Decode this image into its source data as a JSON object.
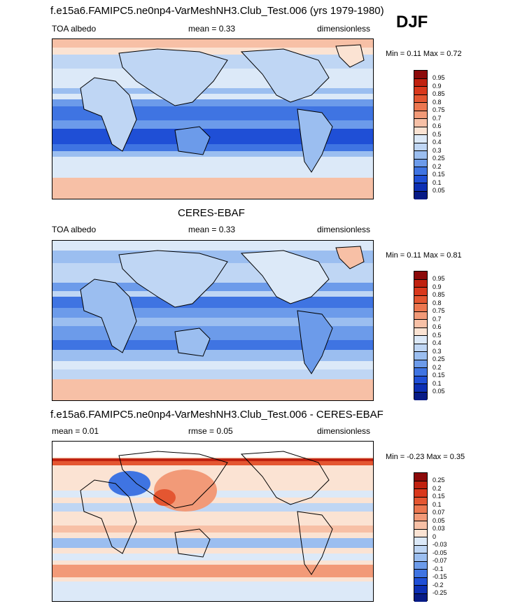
{
  "season": "DJF",
  "panels": [
    {
      "title": "f.e15a6.FAMIPC5.ne0np4-VarMeshNH3.Club_Test.006 (yrs 1979-1980)",
      "left": "TOA albedo",
      "center": "mean =   0.33",
      "right": "dimensionless",
      "minmax": "Min =   0.11 Max =   0.72",
      "colorbar": {
        "labels": [
          "0.95",
          "0.9",
          "0.85",
          "0.8",
          "0.75",
          "0.7",
          "0.6",
          "0.5",
          "0.4",
          "0.3",
          "0.25",
          "0.2",
          "0.15",
          "0.1",
          "0.05"
        ],
        "colors": [
          "#8c0a0a",
          "#c0210f",
          "#d9381c",
          "#e45631",
          "#ec7750",
          "#f29a78",
          "#f7c0a6",
          "#fbe3d3",
          "#dce9f8",
          "#bfd6f4",
          "#9bbef0",
          "#6c9bea",
          "#3f74e2",
          "#1f4fd6",
          "#0c2fb4",
          "#071b86"
        ]
      }
    },
    {
      "title": "CERES-EBAF",
      "left": "TOA albedo",
      "center": "mean =   0.33",
      "right": "dimensionless",
      "minmax": "Min =   0.11 Max =   0.81",
      "colorbar": {
        "labels": [
          "0.95",
          "0.9",
          "0.85",
          "0.8",
          "0.75",
          "0.7",
          "0.6",
          "0.5",
          "0.4",
          "0.3",
          "0.25",
          "0.2",
          "0.15",
          "0.1",
          "0.05"
        ],
        "colors": [
          "#8c0a0a",
          "#c0210f",
          "#d9381c",
          "#e45631",
          "#ec7750",
          "#f29a78",
          "#f7c0a6",
          "#fbe3d3",
          "#dce9f8",
          "#bfd6f4",
          "#9bbef0",
          "#6c9bea",
          "#3f74e2",
          "#1f4fd6",
          "#0c2fb4",
          "#071b86"
        ]
      }
    },
    {
      "title": "f.e15a6.FAMIPC5.ne0np4-VarMeshNH3.Club_Test.006 - CERES-EBAF",
      "left": "mean =   0.01",
      "center": "rmse =   0.05",
      "right": "dimensionless",
      "minmax": "Min =  -0.23 Max =   0.35",
      "colorbar": {
        "labels": [
          "0.25",
          "0.2",
          "0.15",
          "0.1",
          "0.07",
          "0.05",
          "0.03",
          "0",
          "-0.03",
          "-0.05",
          "-0.07",
          "-0.1",
          "-0.15",
          "-0.2",
          "-0.25"
        ],
        "colors": [
          "#8c0a0a",
          "#c0210f",
          "#d9381c",
          "#e45631",
          "#ec7750",
          "#f29a78",
          "#f7c0a6",
          "#fbe3d3",
          "#dce9f8",
          "#bfd6f4",
          "#9bbef0",
          "#6c9bea",
          "#3f74e2",
          "#1f4fd6",
          "#0c2fb4",
          "#071b86"
        ]
      }
    }
  ]
}
